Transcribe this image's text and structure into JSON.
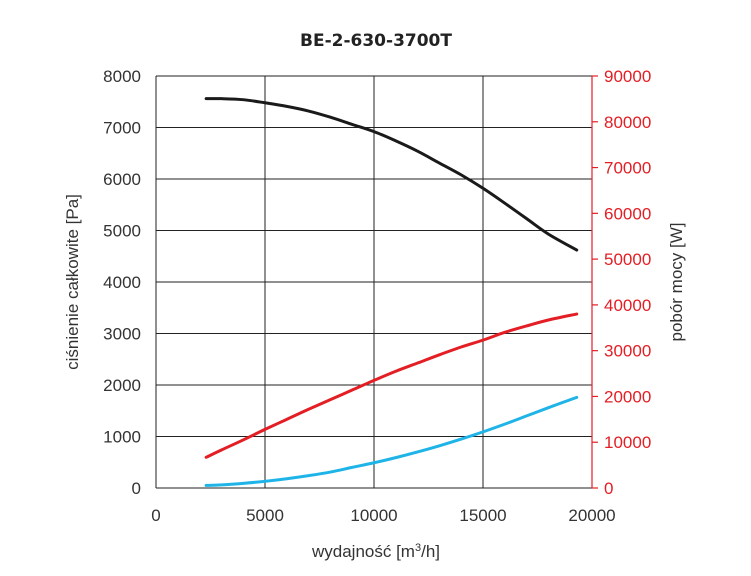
{
  "chart_data": {
    "type": "line",
    "title": "BE-2-630-3700T",
    "xlabel": "wydajność [m³/h]",
    "xlabel_main": "wydajność [m",
    "xlabel_sup": "3",
    "xlabel_end": "/h]",
    "ylabel": "ciśnienie całkowite [Pa]",
    "y2label": "pobór mocy [W]",
    "xlim": [
      0,
      20000
    ],
    "ylim": [
      0,
      8000
    ],
    "y2lim": [
      0,
      90000
    ],
    "x_ticks": [
      "0",
      "5000",
      "10000",
      "15000",
      "20000"
    ],
    "y_ticks": [
      "0",
      "1000",
      "2000",
      "3000",
      "4000",
      "5000",
      "6000",
      "7000",
      "8000"
    ],
    "y2_ticks": [
      "0",
      "10000",
      "20000",
      "30000",
      "40000",
      "50000",
      "60000",
      "70000",
      "80000",
      "90000"
    ],
    "grid": true,
    "colors": {
      "pressure": "#1a1a1a",
      "power": "#e31e24",
      "cyan": "#1fb4e8",
      "right_axis": "#e31e24"
    },
    "series": [
      {
        "key": "pressure",
        "axis": "left",
        "x": [
          2300,
          3000,
          4000,
          5000,
          6000,
          7000,
          8000,
          9000,
          10000,
          11000,
          12000,
          13000,
          14000,
          15000,
          16000,
          17000,
          18000,
          19300
        ],
        "values": [
          7560,
          7560,
          7540,
          7480,
          7410,
          7320,
          7200,
          7060,
          6920,
          6740,
          6540,
          6310,
          6080,
          5820,
          5530,
          5230,
          4930,
          4620
        ]
      },
      {
        "key": "power",
        "axis": "right",
        "x": [
          2300,
          3000,
          4000,
          5000,
          6000,
          7000,
          8000,
          9000,
          10000,
          11000,
          12000,
          13000,
          14000,
          15000,
          16000,
          17000,
          18000,
          19300
        ],
        "values": [
          6700,
          8300,
          10500,
          12800,
          15000,
          17200,
          19300,
          21400,
          23500,
          25500,
          27300,
          29100,
          30800,
          32300,
          34000,
          35400,
          36700,
          38000
        ]
      },
      {
        "key": "cyan",
        "axis": "left",
        "x": [
          2300,
          3000,
          4000,
          5000,
          6000,
          7000,
          8000,
          9000,
          10000,
          11000,
          12000,
          13000,
          14000,
          15000,
          16000,
          17000,
          18000,
          19300
        ],
        "values": [
          50,
          60,
          90,
          130,
          180,
          240,
          310,
          400,
          490,
          590,
          700,
          820,
          950,
          1090,
          1240,
          1400,
          1560,
          1760
        ]
      }
    ]
  }
}
